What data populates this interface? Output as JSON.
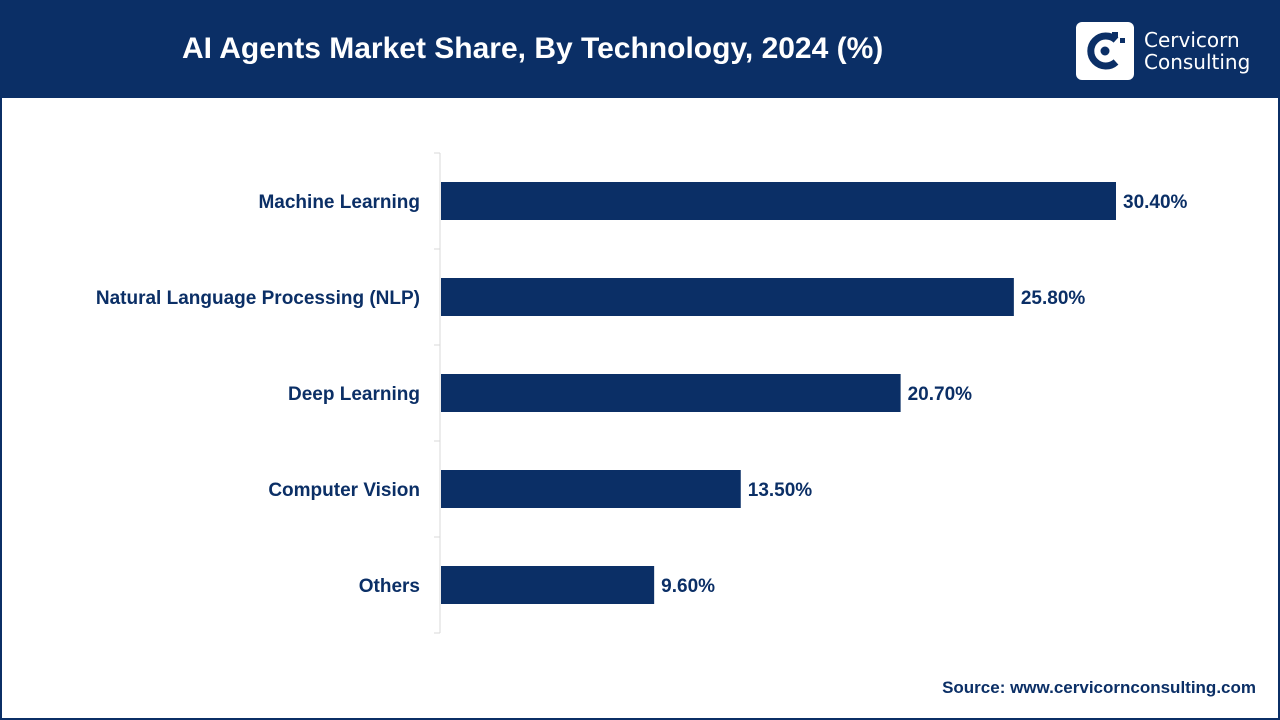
{
  "header": {
    "title": "AI Agents Market Share, By Technology, 2024 (%)",
    "logo_line1": "Cervicorn",
    "logo_line2": "Consulting"
  },
  "colors": {
    "brand": "#0b2f66",
    "bar": "#0b2f66",
    "axis": "#d9d9d9"
  },
  "chart_data": {
    "type": "bar",
    "orientation": "horizontal",
    "title": "AI Agents Market Share, By Technology, 2024 (%)",
    "categories": [
      "Machine Learning",
      "Natural Language Processing (NLP)",
      "Deep Learning",
      "Computer Vision",
      "Others"
    ],
    "values": [
      30.4,
      25.8,
      20.7,
      13.5,
      9.6
    ],
    "labels": [
      "30.40%",
      "25.80%",
      "20.70%",
      "13.50%",
      "9.60%"
    ],
    "xlabel": "",
    "ylabel": "",
    "xlim": [
      0,
      30.4
    ],
    "grid": false,
    "legend": "none"
  },
  "footer": {
    "source": "Source: www.cervicornconsulting.com"
  }
}
